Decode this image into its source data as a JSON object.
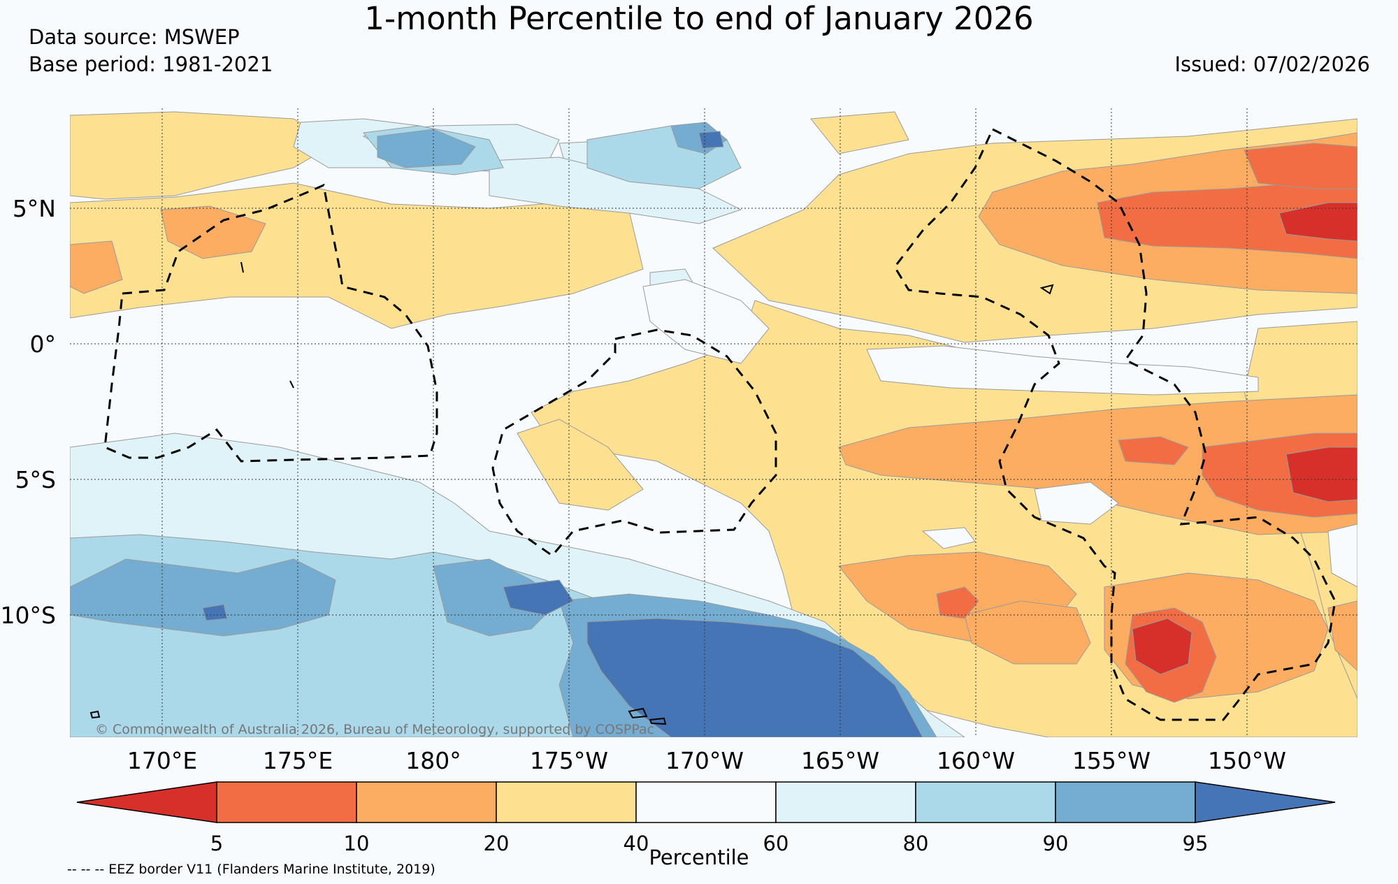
{
  "title": "1-month Percentile to end of January 2026",
  "data_source": "Data source: MSWEP",
  "base_period": "Base period: 1981-2021",
  "issued": "Issued: 07/02/2026",
  "copyright": "© Commonwealth of Australia 2026, Bureau of Meteorology, supported by COSPPac",
  "eez_note": "-- -- -- EEZ border V11 (Flanders Marine Institute, 2019)",
  "latitude_labels": [
    "5°N",
    "0°",
    "5°S",
    "10°S"
  ],
  "latitude_values": [
    5,
    0,
    -5,
    -10
  ],
  "longitude_labels": [
    "170°E",
    "175°E",
    "180°",
    "175°W",
    "170°W",
    "165°W",
    "160°W",
    "155°W",
    "150°W"
  ],
  "longitude_values": [
    170,
    175,
    180,
    -175,
    -170,
    -165,
    -160,
    -155,
    -150
  ],
  "colorbar": {
    "title": "Percentile",
    "ticks": [
      "5",
      "10",
      "20",
      "40",
      "60",
      "80",
      "90",
      "95"
    ],
    "colors": [
      "#d7302a",
      "#f26d43",
      "#fcad61",
      "#fee091",
      "#f8fbfd",
      "#e0f3f8",
      "#abd9e9",
      "#74add1",
      "#4575b4"
    ]
  }
}
